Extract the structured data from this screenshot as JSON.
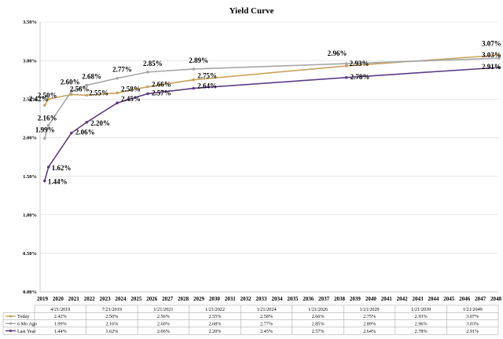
{
  "chart_data": {
    "type": "line",
    "title": "Yield Curve",
    "xlabel": "",
    "ylabel": "",
    "ylim": [
      0,
      3.5
    ],
    "y_ticks": [
      "0.00%",
      "0.50%",
      "1.00%",
      "1.50%",
      "2.00%",
      "2.50%",
      "3.00%",
      "3.50%"
    ],
    "x_ticks": [
      "2019",
      "2020",
      "2021",
      "2022",
      "2023",
      "2024",
      "2025",
      "2026",
      "2027",
      "2028",
      "2029",
      "2030",
      "2031",
      "2032",
      "2033",
      "2034",
      "2035",
      "2036",
      "2037",
      "2038",
      "2039",
      "2040",
      "2041",
      "2042",
      "2043",
      "2044",
      "2045",
      "2046",
      "2047",
      "2048"
    ],
    "grid": "horizontal",
    "legend": "data table below chart",
    "maturity_dates": [
      "4/21/2019",
      "7/21/2019",
      "1/21/2021",
      "1/21/2022",
      "1/21/2024",
      "1/21/2026",
      "1/21/2029",
      "1/21/2039",
      "1/21/2049"
    ],
    "x": [
      2019.3,
      2019.55,
      2021.05,
      2022.05,
      2024.05,
      2026.05,
      2029.05,
      2039.05,
      2049.05
    ],
    "series": [
      {
        "name": "Today",
        "color": "#c9a25d",
        "values": [
          2.42,
          2.5,
          2.56,
          2.55,
          2.58,
          2.66,
          2.75,
          2.93,
          3.07
        ],
        "labels": [
          "2.42%",
          "2.50%",
          "2.56%",
          "2.55%",
          "2.58%",
          "2.66%",
          "2.75%",
          "2.93%",
          "3.07%"
        ]
      },
      {
        "name": "6 Mo Ago",
        "color": "#a6a6a6",
        "values": [
          1.99,
          2.16,
          2.6,
          2.68,
          2.77,
          2.85,
          2.89,
          2.96,
          3.03
        ],
        "labels": [
          "1.99%",
          "2.16%",
          "2.60%",
          "2.68%",
          "2.77%",
          "2.85%",
          "2.89%",
          "2.96%",
          "3.03%"
        ]
      },
      {
        "name": "Last Year",
        "color": "#5b3c88",
        "values": [
          1.44,
          1.62,
          2.06,
          2.2,
          2.45,
          2.57,
          2.64,
          2.78,
          2.91
        ],
        "labels": [
          "1.44%",
          "1.62%",
          "2.06%",
          "2.20%",
          "2.45%",
          "2.57%",
          "2.64%",
          "2.78%",
          "2.91%"
        ]
      }
    ]
  }
}
